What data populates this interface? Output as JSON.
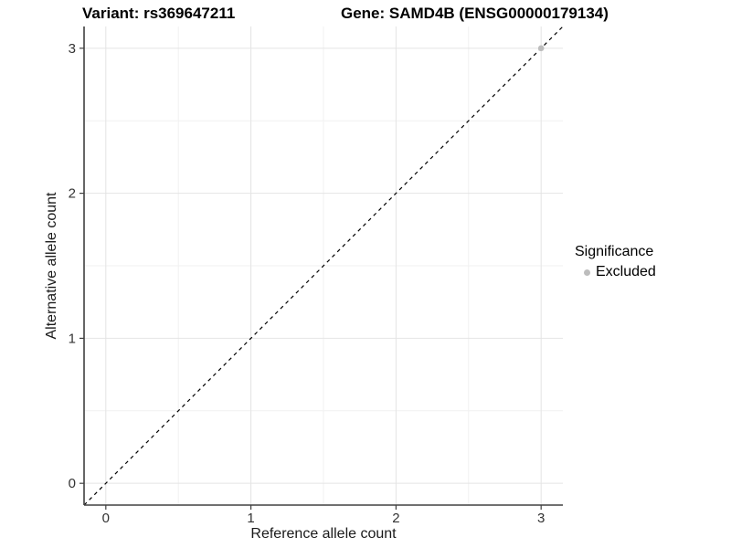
{
  "chart_data": {
    "type": "scatter",
    "title_left": "Variant: rs369647211",
    "title_right": "Gene: SAMD4B (ENSG00000179134)",
    "xlabel": "Reference allele count",
    "ylabel": "Alternative allele count",
    "xlim": [
      -0.15,
      3.15
    ],
    "ylim": [
      -0.15,
      3.15
    ],
    "xticks": [
      0,
      1,
      2,
      3
    ],
    "yticks": [
      0,
      1,
      2,
      3
    ],
    "minor_gridlines": [
      0.5,
      1.5,
      2.5
    ],
    "grid": "on",
    "identity_line": {
      "style": "dashed",
      "slope": 1,
      "intercept": 0,
      "color": "#000000"
    },
    "series": [
      {
        "name": "Excluded",
        "color": "#bdbdbd",
        "points": [
          {
            "x": 3,
            "y": 3
          }
        ]
      }
    ],
    "legend": {
      "position": "right",
      "title": "Significance",
      "items": [
        {
          "label": "Excluded",
          "color": "#bdbdbd"
        }
      ]
    }
  },
  "colors": {
    "axis": "#404040",
    "tick_label": "#333333",
    "grid_major": "#e4e4e4",
    "grid_minor": "#f1f1f1",
    "background": "#ffffff"
  }
}
